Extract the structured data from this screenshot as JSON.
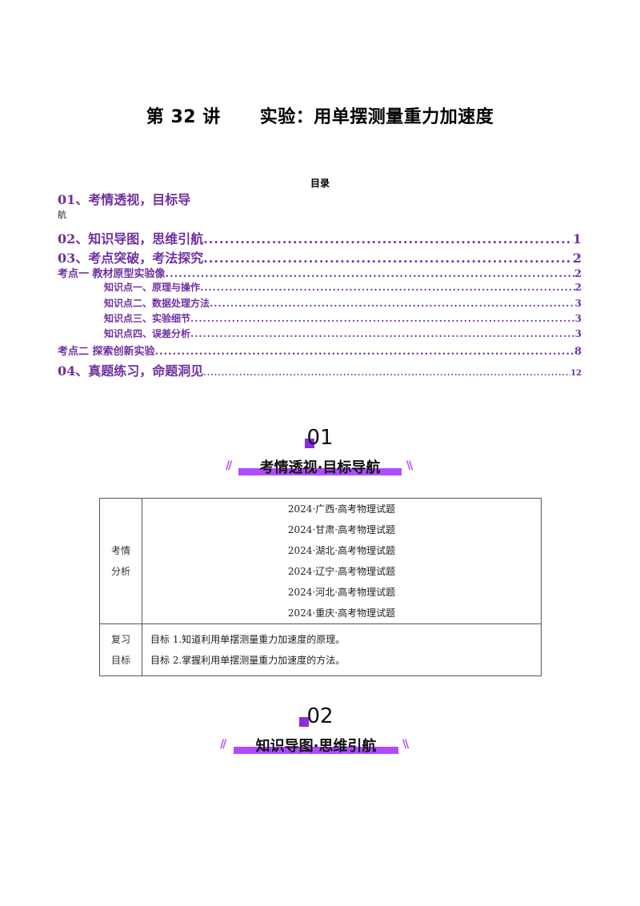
{
  "document": {
    "title_num": "第 32 讲",
    "title_text": "实验：用单摆测量重力加速度",
    "toc_heading": "目录"
  },
  "toc": [
    {
      "label": "01、考情透视，目标导",
      "page": ""
    },
    {
      "label": "02、知识导图，思维引航",
      "page": "1"
    },
    {
      "label": "03、考点突破，考法探究",
      "page": "2"
    },
    {
      "label": "考点一   教材原型实验像",
      "page": "2"
    },
    {
      "label": "知识点一、原理与操作",
      "page": "2"
    },
    {
      "label": "知识点二、数据处理方法",
      "page": "3"
    },
    {
      "label": "知识点三、实验细节",
      "page": "3"
    },
    {
      "label": "知识点四、误差分析",
      "page": "3"
    },
    {
      "label": "考点二   探索创新实验",
      "page": "8"
    },
    {
      "label": "04、真题练习，命题洞见",
      "page": "12"
    }
  ],
  "toc_wrap": "航",
  "section1": {
    "number": "01",
    "title": "考情透视·目标导航"
  },
  "section2": {
    "number": "02",
    "title": "知识导图·思维引航"
  },
  "info_table": {
    "analysis_label_1": "考情",
    "analysis_label_2": "分析",
    "sources": [
      "2024·广西·高考物理试题",
      "2024·甘肃·高考物理试题",
      "2024·湖北·高考物理试题",
      "2024·辽宁·高考物理试题",
      "2024·河北·高考物理试题",
      "2024·重庆·高考物理试题"
    ],
    "goal_label_1": "复习",
    "goal_label_2": "目标",
    "goals": [
      "目标 1.知道利用单摆测量重力加速度的原理。",
      "目标 2.掌握利用单摆测量重力加速度的方法。"
    ]
  },
  "colors": {
    "accent": "#7030a0",
    "banner": "#b04bff"
  }
}
